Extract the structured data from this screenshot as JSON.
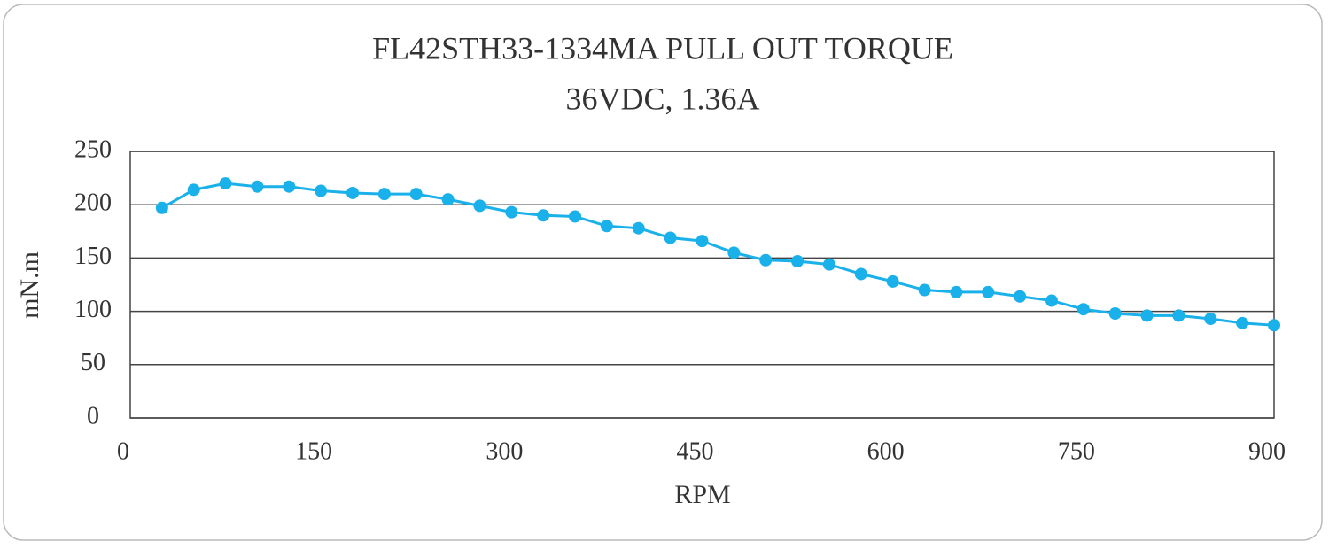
{
  "chart_data": {
    "type": "line",
    "title": "FL42STH33-1334MA PULL OUT TORQUE",
    "subtitle": "36VDC, 1.36A",
    "x_label": "RPM",
    "y_label": "mN.m",
    "x": [
      25,
      50,
      75,
      100,
      125,
      150,
      175,
      200,
      225,
      250,
      275,
      300,
      325,
      350,
      375,
      400,
      425,
      450,
      475,
      500,
      525,
      550,
      575,
      600,
      625,
      650,
      675,
      700,
      725,
      750,
      775,
      800,
      825,
      850,
      875,
      900
    ],
    "series": [
      {
        "name": "Pull out torque",
        "color": "#1ab0ea",
        "values": [
          197,
          214,
          220,
          217,
          217,
          213,
          211,
          210,
          210,
          205,
          199,
          193,
          190,
          189,
          180,
          178,
          169,
          166,
          155,
          148,
          147,
          144,
          135,
          128,
          120,
          118,
          118,
          114,
          110,
          102,
          98,
          96,
          96,
          93,
          89,
          87
        ]
      }
    ],
    "xlim": [
      0,
      900
    ],
    "xticks": [
      0,
      150,
      300,
      450,
      600,
      750,
      900
    ],
    "ylim": [
      0,
      250
    ],
    "yticks": [
      0,
      50,
      100,
      150,
      200,
      250
    ],
    "grid": true
  }
}
